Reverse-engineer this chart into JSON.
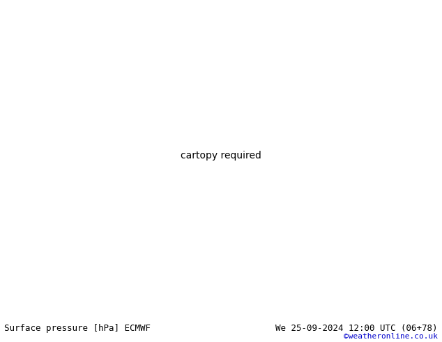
{
  "title_left": "Surface pressure [hPa] ECMWF",
  "title_right": "We 25-09-2024 12:00 UTC (06+78)",
  "copyright": "©weatheronline.co.uk",
  "bg_color": "#ffffff",
  "ocean_color": "#e8eef4",
  "land_color": "#b8dfa0",
  "land_edge": "#888888",
  "text_color_black": "#000000",
  "text_color_blue": "#0000cc",
  "contour_blue": "#0000cc",
  "contour_red": "#cc0000",
  "contour_black": "#000000",
  "bottom_bar_color": "#c8dff0",
  "font_size_title": 9,
  "font_size_copyright": 8,
  "fig_width": 6.34,
  "fig_height": 4.9,
  "dpi": 100,
  "lon_min": -100,
  "lon_max": 20,
  "lat_min": -65,
  "lat_max": 25
}
